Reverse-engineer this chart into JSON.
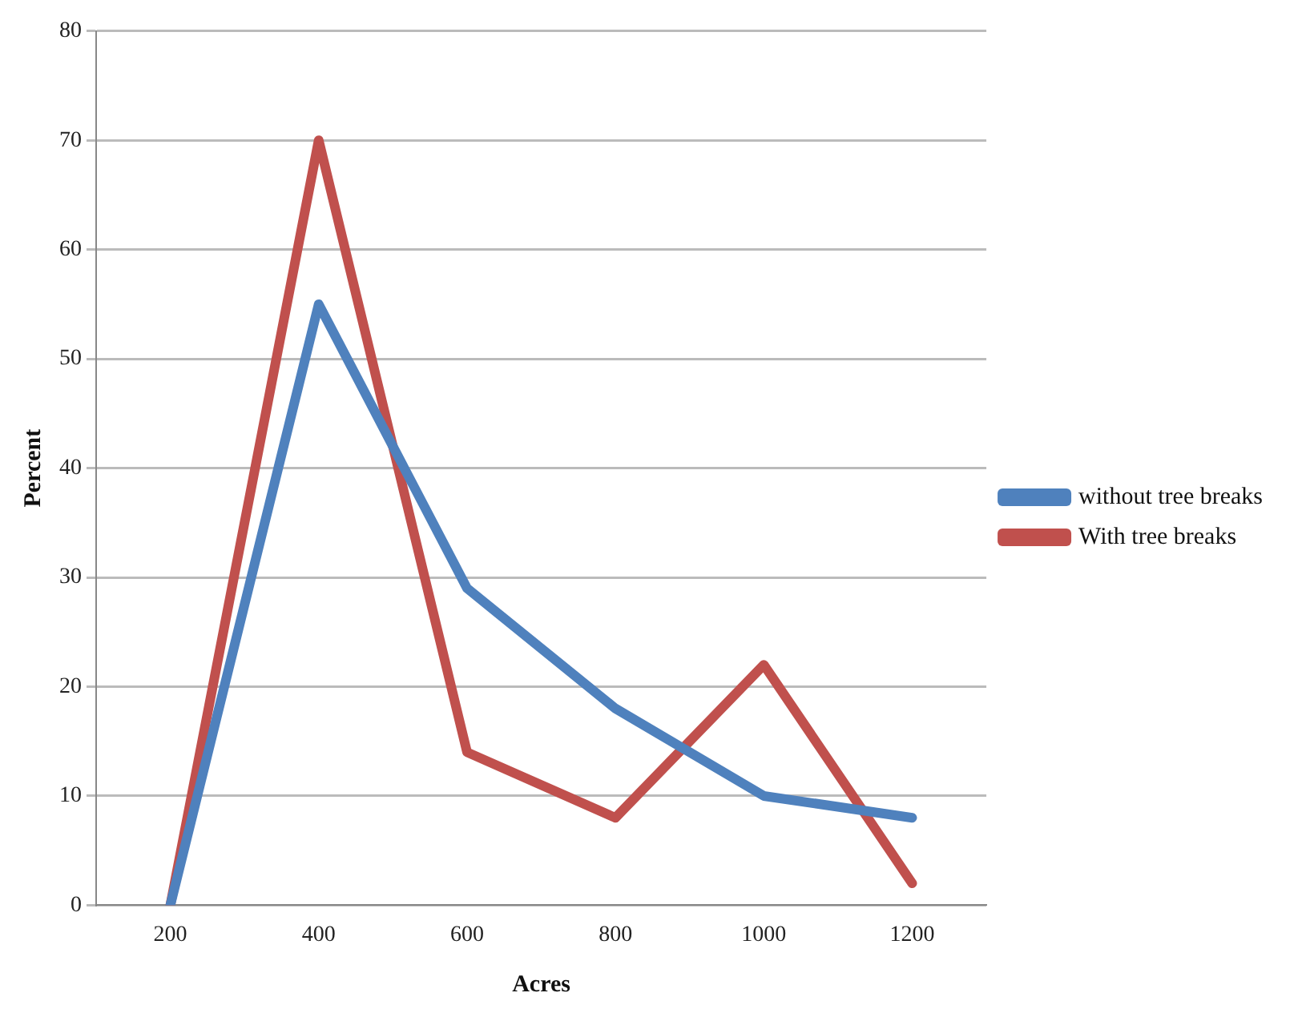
{
  "chart_data": {
    "type": "line",
    "xlabel": "Acres",
    "ylabel": "Percent",
    "categories": [
      "200",
      "400",
      "600",
      "800",
      "1000",
      "1200"
    ],
    "series": [
      {
        "name": "without tree breaks",
        "color": "#4f81bd",
        "values": [
          0,
          55,
          29,
          18,
          10,
          8
        ]
      },
      {
        "name": "With tree breaks",
        "color": "#c0504d",
        "values": [
          0,
          70,
          14,
          8,
          22,
          2
        ]
      }
    ],
    "ylim": [
      0,
      80
    ],
    "yticks": [
      0,
      10,
      20,
      30,
      40,
      50,
      60,
      70,
      80
    ],
    "grid": "y",
    "legend": "right",
    "marker": "none",
    "line_style": "solid"
  }
}
